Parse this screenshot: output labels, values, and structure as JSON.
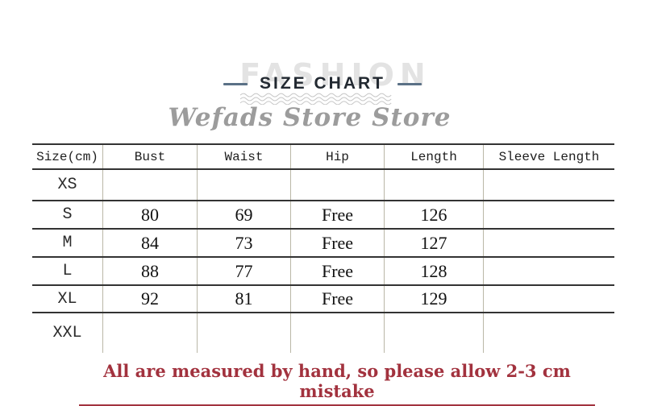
{
  "header": {
    "ghost_text": "FASHION",
    "title": "SIZE CHART",
    "store_name": "Wefads Store Store"
  },
  "table": {
    "columns": [
      "Size(cm)",
      "Bust",
      "Waist",
      "Hip",
      "Length",
      "Sleeve Length"
    ],
    "rows": [
      [
        "XS",
        "",
        "",
        "",
        "",
        ""
      ],
      [
        "S",
        "80",
        "69",
        "Free",
        "126",
        ""
      ],
      [
        "M",
        "84",
        "73",
        "Free",
        "127",
        ""
      ],
      [
        "L",
        "88",
        "77",
        "Free",
        "128",
        ""
      ],
      [
        "XL",
        "92",
        "81",
        "Free",
        "129",
        ""
      ],
      [
        "XXL",
        "",
        "",
        "",
        "",
        ""
      ]
    ]
  },
  "note": "All are measured by hand, so please allow 2-3 cm mistake",
  "colors": {
    "note_red": "#a2323e",
    "title_dash_blue": "#5b7186",
    "ghost_gray": "#e3e3e3",
    "store_gray": "#9c9c9c",
    "grid_dark": "#333333",
    "grid_light": "#bab7a7",
    "wave_gray": "#c8c8c8"
  }
}
